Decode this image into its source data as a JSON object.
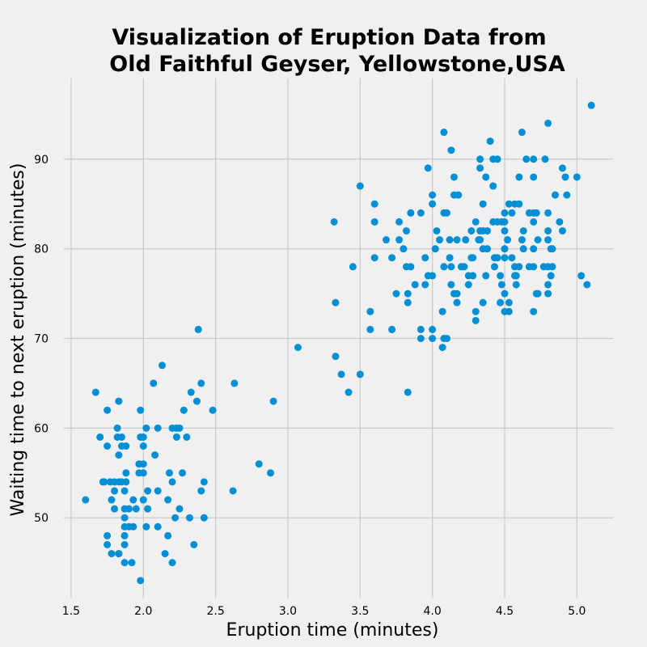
{
  "chart_data": {
    "type": "scatter",
    "title_line1": "Visualization of Eruption Data from",
    "title_line2": "Old Faithful Geyser, Yellowstone,USA",
    "xlabel": "Eruption time (minutes)",
    "ylabel": "Waiting time to next eruption (minutes)",
    "xlim": [
      1.45,
      5.25
    ],
    "ylim": [
      41,
      99
    ],
    "xticks": [
      "1.5",
      "2.0",
      "2.5",
      "3.0",
      "3.5",
      "4.0",
      "4.5",
      "5.0"
    ],
    "yticks": [
      "50",
      "60",
      "70",
      "80",
      "90"
    ],
    "grid": true,
    "color": "#008fd5",
    "series": [
      {
        "points": [
          [
            1.6,
            52
          ],
          [
            1.67,
            64
          ],
          [
            1.7,
            59
          ],
          [
            1.72,
            54
          ],
          [
            1.73,
            54
          ],
          [
            1.75,
            62
          ],
          [
            1.75,
            58
          ],
          [
            1.75,
            48
          ],
          [
            1.75,
            47
          ],
          [
            1.77,
            54
          ],
          [
            1.78,
            52
          ],
          [
            1.78,
            46
          ],
          [
            1.8,
            54
          ],
          [
            1.8,
            53
          ],
          [
            1.8,
            51
          ],
          [
            1.82,
            59
          ],
          [
            1.82,
            60
          ],
          [
            1.83,
            46
          ],
          [
            1.83,
            46
          ],
          [
            1.83,
            54
          ],
          [
            1.83,
            63
          ],
          [
            1.83,
            57
          ],
          [
            1.85,
            59
          ],
          [
            1.85,
            58
          ],
          [
            1.85,
            54
          ],
          [
            1.87,
            53
          ],
          [
            1.87,
            51
          ],
          [
            1.87,
            50
          ],
          [
            1.87,
            49
          ],
          [
            1.87,
            48
          ],
          [
            1.87,
            47
          ],
          [
            1.87,
            45
          ],
          [
            1.88,
            55
          ],
          [
            1.88,
            58
          ],
          [
            1.88,
            54
          ],
          [
            1.9,
            51
          ],
          [
            1.9,
            49
          ],
          [
            1.92,
            45
          ],
          [
            1.93,
            52
          ],
          [
            1.93,
            49
          ],
          [
            1.95,
            51
          ],
          [
            1.97,
            56
          ],
          [
            1.97,
            55
          ],
          [
            1.98,
            62
          ],
          [
            1.98,
            59
          ],
          [
            1.98,
            43
          ],
          [
            2.0,
            59
          ],
          [
            2.0,
            58
          ],
          [
            2.0,
            56
          ],
          [
            2.0,
            55
          ],
          [
            2.0,
            52
          ],
          [
            2.02,
            60
          ],
          [
            2.02,
            49
          ],
          [
            2.03,
            53
          ],
          [
            2.03,
            51
          ],
          [
            2.07,
            65
          ],
          [
            2.08,
            57
          ],
          [
            2.1,
            60
          ],
          [
            2.1,
            53
          ],
          [
            2.1,
            49
          ],
          [
            2.13,
            67
          ],
          [
            2.15,
            46
          ],
          [
            2.17,
            52
          ],
          [
            2.17,
            48
          ],
          [
            2.18,
            55
          ],
          [
            2.2,
            60
          ],
          [
            2.2,
            54
          ],
          [
            2.2,
            45
          ],
          [
            2.22,
            50
          ],
          [
            2.23,
            60
          ],
          [
            2.23,
            59
          ],
          [
            2.25,
            60
          ],
          [
            2.25,
            51
          ],
          [
            2.27,
            55
          ],
          [
            2.28,
            62
          ],
          [
            2.3,
            59
          ],
          [
            2.32,
            50
          ],
          [
            2.33,
            64
          ],
          [
            2.35,
            47
          ],
          [
            2.37,
            63
          ],
          [
            2.38,
            71
          ],
          [
            2.4,
            65
          ],
          [
            2.4,
            53
          ],
          [
            2.42,
            54
          ],
          [
            2.42,
            50
          ],
          [
            2.48,
            62
          ],
          [
            2.62,
            53
          ],
          [
            2.63,
            65
          ],
          [
            2.8,
            56
          ],
          [
            2.88,
            55
          ],
          [
            2.9,
            63
          ],
          [
            3.07,
            69
          ],
          [
            3.32,
            83
          ],
          [
            3.33,
            68
          ],
          [
            3.33,
            74
          ],
          [
            3.37,
            66
          ],
          [
            3.42,
            64
          ],
          [
            3.45,
            78
          ],
          [
            3.5,
            87
          ],
          [
            3.5,
            66
          ],
          [
            3.57,
            73
          ],
          [
            3.57,
            71
          ],
          [
            3.6,
            85
          ],
          [
            3.6,
            83
          ],
          [
            3.6,
            83
          ],
          [
            3.6,
            79
          ],
          [
            3.68,
            81
          ],
          [
            3.72,
            79
          ],
          [
            3.72,
            71
          ],
          [
            3.75,
            75
          ],
          [
            3.77,
            83
          ],
          [
            3.77,
            81
          ],
          [
            3.8,
            80
          ],
          [
            3.82,
            82
          ],
          [
            3.82,
            78
          ],
          [
            3.83,
            75
          ],
          [
            3.83,
            74
          ],
          [
            3.83,
            64
          ],
          [
            3.85,
            84
          ],
          [
            3.85,
            78
          ],
          [
            3.88,
            76
          ],
          [
            3.92,
            84
          ],
          [
            3.92,
            71
          ],
          [
            3.92,
            70
          ],
          [
            3.95,
            79
          ],
          [
            3.95,
            76
          ],
          [
            3.97,
            89
          ],
          [
            3.97,
            77
          ],
          [
            4.0,
            86
          ],
          [
            4.0,
            85
          ],
          [
            4.0,
            77
          ],
          [
            4.0,
            71
          ],
          [
            4.0,
            70
          ],
          [
            4.02,
            80
          ],
          [
            4.03,
            82
          ],
          [
            4.05,
            81
          ],
          [
            4.07,
            73
          ],
          [
            4.07,
            69
          ],
          [
            4.08,
            93
          ],
          [
            4.08,
            84
          ],
          [
            4.08,
            78
          ],
          [
            4.08,
            70
          ],
          [
            4.1,
            84
          ],
          [
            4.1,
            70
          ],
          [
            4.12,
            81
          ],
          [
            4.12,
            79
          ],
          [
            4.13,
            91
          ],
          [
            4.13,
            78
          ],
          [
            4.13,
            76
          ],
          [
            4.15,
            88
          ],
          [
            4.15,
            86
          ],
          [
            4.15,
            75
          ],
          [
            4.17,
            81
          ],
          [
            4.17,
            75
          ],
          [
            4.17,
            74
          ],
          [
            4.18,
            86
          ],
          [
            4.2,
            78
          ],
          [
            4.22,
            78
          ],
          [
            4.23,
            81
          ],
          [
            4.25,
            77
          ],
          [
            4.25,
            76
          ],
          [
            4.27,
            79
          ],
          [
            4.27,
            82
          ],
          [
            4.28,
            77
          ],
          [
            4.28,
            79
          ],
          [
            4.3,
            83
          ],
          [
            4.3,
            73
          ],
          [
            4.3,
            72
          ],
          [
            4.32,
            81
          ],
          [
            4.33,
            90
          ],
          [
            4.33,
            89
          ],
          [
            4.33,
            82
          ],
          [
            4.33,
            81
          ],
          [
            4.35,
            85
          ],
          [
            4.35,
            82
          ],
          [
            4.35,
            80
          ],
          [
            4.35,
            74
          ],
          [
            4.37,
            88
          ],
          [
            4.37,
            77
          ],
          [
            4.38,
            82
          ],
          [
            4.38,
            80
          ],
          [
            4.4,
            92
          ],
          [
            4.42,
            90
          ],
          [
            4.42,
            87
          ],
          [
            4.42,
            83
          ],
          [
            4.43,
            79
          ],
          [
            4.43,
            78
          ],
          [
            4.45,
            90
          ],
          [
            4.45,
            83
          ],
          [
            4.45,
            79
          ],
          [
            4.47,
            77
          ],
          [
            4.47,
            74
          ],
          [
            4.48,
            83
          ],
          [
            4.48,
            76
          ],
          [
            4.5,
            84
          ],
          [
            4.5,
            83
          ],
          [
            4.5,
            82
          ],
          [
            4.5,
            80
          ],
          [
            4.5,
            79
          ],
          [
            4.5,
            75
          ],
          [
            4.5,
            73
          ],
          [
            4.52,
            81
          ],
          [
            4.53,
            85
          ],
          [
            4.53,
            74
          ],
          [
            4.53,
            73
          ],
          [
            4.55,
            84
          ],
          [
            4.55,
            79
          ],
          [
            4.57,
            85
          ],
          [
            4.57,
            78
          ],
          [
            4.57,
            77
          ],
          [
            4.58,
            76
          ],
          [
            4.58,
            77
          ],
          [
            4.6,
            88
          ],
          [
            4.6,
            85
          ],
          [
            4.6,
            78
          ],
          [
            4.62,
            93
          ],
          [
            4.62,
            81
          ],
          [
            4.63,
            82
          ],
          [
            4.63,
            80
          ],
          [
            4.65,
            90
          ],
          [
            4.67,
            84
          ],
          [
            4.67,
            78
          ],
          [
            4.7,
            90
          ],
          [
            4.7,
            88
          ],
          [
            4.7,
            84
          ],
          [
            4.7,
            83
          ],
          [
            4.7,
            80
          ],
          [
            4.7,
            78
          ],
          [
            4.7,
            73
          ],
          [
            4.72,
            84
          ],
          [
            4.72,
            75
          ],
          [
            4.73,
            81
          ],
          [
            4.73,
            75
          ],
          [
            4.77,
            78
          ],
          [
            4.78,
            90
          ],
          [
            4.8,
            94
          ],
          [
            4.8,
            84
          ],
          [
            4.8,
            82
          ],
          [
            4.8,
            81
          ],
          [
            4.8,
            78
          ],
          [
            4.8,
            76
          ],
          [
            4.8,
            75
          ],
          [
            4.82,
            80
          ],
          [
            4.82,
            77
          ],
          [
            4.83,
            80
          ],
          [
            4.83,
            78
          ],
          [
            4.85,
            86
          ],
          [
            4.88,
            83
          ],
          [
            4.9,
            89
          ],
          [
            4.9,
            82
          ],
          [
            4.92,
            88
          ],
          [
            4.93,
            86
          ],
          [
            5.0,
            88
          ],
          [
            5.03,
            77
          ],
          [
            5.07,
            76
          ],
          [
            5.1,
            96
          ]
        ]
      }
    ]
  }
}
